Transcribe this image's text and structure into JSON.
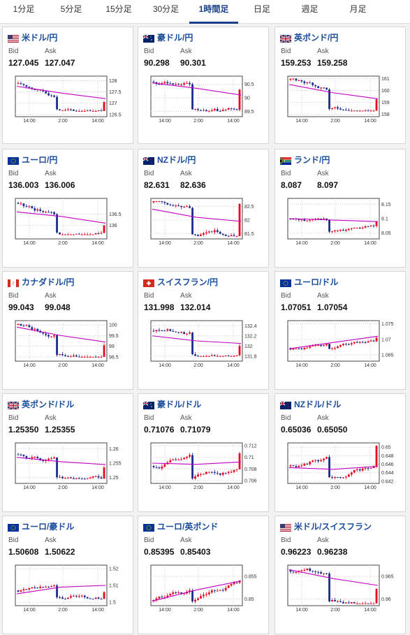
{
  "tabs": [
    {
      "label": "1分足",
      "active": false
    },
    {
      "label": "5分足",
      "active": false
    },
    {
      "label": "15分足",
      "active": false
    },
    {
      "label": "30分足",
      "active": false
    },
    {
      "label": "1時間足",
      "active": true
    },
    {
      "label": "日足",
      "active": false
    },
    {
      "label": "週足",
      "active": false
    },
    {
      "label": "月足",
      "active": false
    }
  ],
  "bid_label": "Bid",
  "ask_label": "Ask",
  "pairs": [
    {
      "name": "米ドル/円",
      "bid": "127.045",
      "ask": "127.047",
      "flags": [
        "us-flag",
        "jp-flag"
      ],
      "chart_data": {
        "type": "candlestick",
        "x_ticks": [
          "14:00",
          "2:00",
          "14:00"
        ],
        "y_ticks": [
          "128",
          "127.5",
          "127",
          "126.5"
        ],
        "ylim": [
          126.4,
          128.2
        ],
        "start": 127.85,
        "end": 127.05,
        "min": 126.65,
        "max": 128.0,
        "ma": [
          127.75,
          127.45,
          127.2
        ]
      }
    },
    {
      "name": "豪ドル/円",
      "bid": "90.298",
      "ask": "90.301",
      "flags": [
        "au-flag",
        "jp-flag"
      ],
      "chart_data": {
        "type": "candlestick",
        "x_ticks": [
          "14:00",
          "2:00",
          "14:00"
        ],
        "y_ticks": [
          "90.5",
          "90",
          "89.5"
        ],
        "ylim": [
          89.3,
          90.8
        ],
        "start": 90.6,
        "end": 90.3,
        "min": 89.5,
        "max": 90.75,
        "ma": [
          90.55,
          90.35,
          90.1
        ]
      }
    },
    {
      "name": "英ポンド/円",
      "bid": "159.253",
      "ask": "159.258",
      "flags": [
        "gb-flag",
        "jp-flag"
      ],
      "chart_data": {
        "type": "candlestick",
        "x_ticks": [
          "14:00",
          "2:00",
          "14:00"
        ],
        "y_ticks": [
          "161",
          "160",
          "159",
          "158"
        ],
        "ylim": [
          157.8,
          161.2
        ],
        "start": 160.9,
        "end": 159.25,
        "min": 158.3,
        "max": 161.0,
        "ma": [
          160.5,
          159.8,
          159.3
        ]
      }
    },
    {
      "name": "ユーロ/円",
      "bid": "136.003",
      "ask": "136.006",
      "flags": [
        "eu-flag",
        "jp-flag"
      ],
      "chart_data": {
        "type": "candlestick",
        "x_ticks": [
          "14:00",
          "2:00",
          "14:00"
        ],
        "y_ticks": [
          "136.5",
          "136"
        ],
        "ylim": [
          135.4,
          137.2
        ],
        "start": 137.0,
        "end": 136.0,
        "min": 135.6,
        "max": 137.1,
        "ma": [
          136.6,
          136.4,
          136.1
        ]
      }
    },
    {
      "name": "NZドル/円",
      "bid": "82.631",
      "ask": "82.636",
      "flags": [
        "nz-flag",
        "jp-flag"
      ],
      "chart_data": {
        "type": "candlestick",
        "x_ticks": [
          "14:00",
          "2:00",
          "14:00"
        ],
        "y_ticks": [
          "82.5",
          "82",
          "81.5"
        ],
        "ylim": [
          81.3,
          82.8
        ],
        "start": 82.65,
        "end": 82.6,
        "min": 81.4,
        "max": 82.7,
        "ma": [
          82.4,
          82.1,
          81.95
        ]
      }
    },
    {
      "name": "ランド/円",
      "bid": "8.087",
      "ask": "8.097",
      "flags": [
        "za-flag",
        "jp-flag"
      ],
      "chart_data": {
        "type": "candlestick",
        "x_ticks": [
          "14:00",
          "2:00",
          "14:00"
        ],
        "y_ticks": [
          "8.15",
          "8.1",
          "8.05"
        ],
        "ylim": [
          8.03,
          8.17
        ],
        "start": 8.1,
        "end": 8.09,
        "min": 8.05,
        "max": 8.14,
        "ma": [
          8.1,
          8.095,
          8.09
        ]
      }
    },
    {
      "name": "カナダドル/円",
      "bid": "99.043",
      "ask": "99.048",
      "flags": [
        "ca-flag",
        "jp-flag"
      ],
      "chart_data": {
        "type": "candlestick",
        "x_ticks": [
          "14:00",
          "2:00",
          "14:00"
        ],
        "y_ticks": [
          "100",
          "99.5",
          "99",
          "98.5"
        ],
        "ylim": [
          98.3,
          100.2
        ],
        "start": 100.0,
        "end": 99.04,
        "min": 98.5,
        "max": 100.05,
        "ma": [
          99.9,
          99.5,
          99.2
        ]
      }
    },
    {
      "name": "スイスフラン/円",
      "bid": "131.998",
      "ask": "132.014",
      "flags": [
        "ch-flag",
        "jp-flag"
      ],
      "chart_data": {
        "type": "candlestick",
        "x_ticks": [
          "14:00",
          "2:00",
          "14:00"
        ],
        "y_ticks": [
          "132.4",
          "132.2",
          "132",
          "131.8"
        ],
        "ylim": [
          131.7,
          132.5
        ],
        "start": 132.3,
        "end": 132.0,
        "min": 131.8,
        "max": 132.45,
        "ma": [
          132.2,
          132.1,
          132.05
        ]
      }
    },
    {
      "name": "ユーロ/ドル",
      "bid": "1.07051",
      "ask": "1.07054",
      "flags": [
        "eu-flag",
        "us-flag"
      ],
      "chart_data": {
        "type": "candlestick",
        "x_ticks": [
          "14:00",
          "2:00",
          "14:00"
        ],
        "y_ticks": [
          "1.075",
          "1.07",
          "1.065"
        ],
        "ylim": [
          1.063,
          1.076
        ],
        "start": 1.067,
        "end": 1.0705,
        "min": 1.0665,
        "max": 1.074,
        "ma": [
          1.067,
          1.069,
          1.071
        ]
      }
    },
    {
      "name": "英ポンド/ドル",
      "bid": "1.25350",
      "ask": "1.25355",
      "flags": [
        "gb-flag",
        "us-flag"
      ],
      "chart_data": {
        "type": "candlestick",
        "x_ticks": [
          "14:00",
          "2:00",
          "14:00"
        ],
        "y_ticks": [
          "1.26",
          "1.255",
          "1.25"
        ],
        "ylim": [
          1.248,
          1.262
        ],
        "start": 1.258,
        "end": 1.2535,
        "min": 1.2495,
        "max": 1.261,
        "ma": [
          1.257,
          1.2555,
          1.2545
        ]
      }
    },
    {
      "name": "豪ドル/ドル",
      "bid": "0.71076",
      "ask": "0.71079",
      "flags": [
        "au-flag",
        "us-flag"
      ],
      "chart_data": {
        "type": "candlestick",
        "x_ticks": [
          "14:00",
          "2:00",
          "14:00"
        ],
        "y_ticks": [
          "0.712",
          "0.71",
          "0.708",
          "0.706"
        ],
        "ylim": [
          0.7055,
          0.7125
        ],
        "start": 0.7085,
        "end": 0.7107,
        "min": 0.706,
        "max": 0.712,
        "ma": [
          0.709,
          0.7088,
          0.7092
        ]
      }
    },
    {
      "name": "NZドル/ドル",
      "bid": "0.65036",
      "ask": "0.65050",
      "flags": [
        "nz-flag",
        "us-flag"
      ],
      "chart_data": {
        "type": "candlestick",
        "x_ticks": [
          "14:00",
          "2:00",
          "14:00"
        ],
        "y_ticks": [
          "0.65",
          "0.648",
          "0.646",
          "0.644",
          "0.642"
        ],
        "ylim": [
          0.6415,
          0.651
        ],
        "start": 0.6455,
        "end": 0.6503,
        "min": 0.6425,
        "max": 0.6505,
        "ma": [
          0.6452,
          0.6448,
          0.6455
        ]
      }
    },
    {
      "name": "ユーロ/豪ドル",
      "bid": "1.50608",
      "ask": "1.50622",
      "flags": [
        "eu-flag",
        "au-flag"
      ],
      "chart_data": {
        "type": "candlestick",
        "x_ticks": [
          "14:00",
          "2:00",
          "14:00"
        ],
        "y_ticks": [
          "1.52",
          "1.51",
          "1.5"
        ],
        "ylim": [
          1.498,
          1.522
        ],
        "start": 1.507,
        "end": 1.506,
        "min": 1.502,
        "max": 1.519,
        "ma": [
          1.505,
          1.509,
          1.51
        ]
      }
    },
    {
      "name": "ユーロ/英ポンド",
      "bid": "0.85395",
      "ask": "0.85403",
      "flags": [
        "eu-flag",
        "gb-flag"
      ],
      "chart_data": {
        "type": "candlestick",
        "x_ticks": [
          "14:00",
          "2:00",
          "14:00"
        ],
        "y_ticks": [
          "0.855",
          "0.85"
        ],
        "ylim": [
          0.8485,
          0.8575
        ],
        "start": 0.8495,
        "end": 0.854,
        "min": 0.849,
        "max": 0.857,
        "ma": [
          0.8495,
          0.852,
          0.854
        ]
      }
    },
    {
      "name": "米ドル/スイスフラン",
      "bid": "0.96223",
      "ask": "0.96238",
      "flags": [
        "us-flag",
        "ch-flag"
      ],
      "chart_data": {
        "type": "candlestick",
        "x_ticks": [
          "14:00",
          "2:00",
          "14:00"
        ],
        "y_ticks": [
          "0.965",
          "0.96"
        ],
        "ylim": [
          0.9585,
          0.9675
        ],
        "start": 0.9665,
        "end": 0.9622,
        "min": 0.959,
        "max": 0.967,
        "ma": [
          0.9665,
          0.9645,
          0.963
        ]
      }
    }
  ]
}
